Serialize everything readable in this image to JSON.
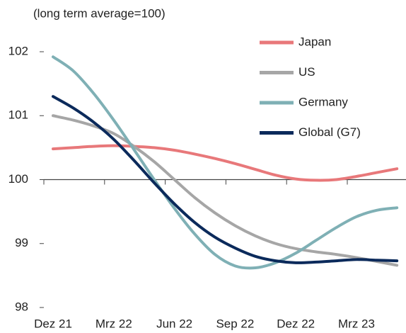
{
  "chart_data": {
    "type": "line",
    "subtitle": "(long term average=100)",
    "categories": [
      "Dez 21",
      null,
      null,
      "Mrz 22",
      null,
      null,
      "Jun 22",
      null,
      null,
      "Sep 22",
      null,
      null,
      "Dez 22",
      null,
      null,
      "Mrz 23",
      null,
      null
    ],
    "series": [
      {
        "name": "Japan",
        "color": "#e8787a",
        "values": [
          100.48,
          100.5,
          100.52,
          100.53,
          100.52,
          100.5,
          100.46,
          100.4,
          100.33,
          100.25,
          100.16,
          100.07,
          100.01,
          99.99,
          100.0,
          100.05,
          100.11,
          100.17
        ]
      },
      {
        "name": "US",
        "color": "#a6a6a6",
        "values": [
          101.0,
          100.93,
          100.84,
          100.72,
          100.52,
          100.28,
          100.0,
          99.72,
          99.48,
          99.28,
          99.12,
          99.0,
          98.92,
          98.87,
          98.83,
          98.78,
          98.72,
          98.66
        ]
      },
      {
        "name": "Germany",
        "color": "#7fb0b5",
        "values": [
          101.92,
          101.7,
          101.35,
          100.93,
          100.47,
          100.0,
          99.55,
          99.15,
          98.83,
          98.65,
          98.62,
          98.7,
          98.85,
          99.05,
          99.25,
          99.42,
          99.52,
          99.56
        ]
      },
      {
        "name": "Global (G7)",
        "color": "#0b2a5b",
        "values": [
          101.3,
          101.12,
          100.9,
          100.63,
          100.3,
          99.95,
          99.62,
          99.33,
          99.1,
          98.93,
          98.8,
          98.73,
          98.7,
          98.71,
          98.73,
          98.75,
          98.74,
          98.73
        ]
      }
    ],
    "ylim": [
      98,
      102
    ],
    "yticks": [
      98,
      99,
      100,
      101,
      102
    ],
    "xaxis_at": 100
  }
}
